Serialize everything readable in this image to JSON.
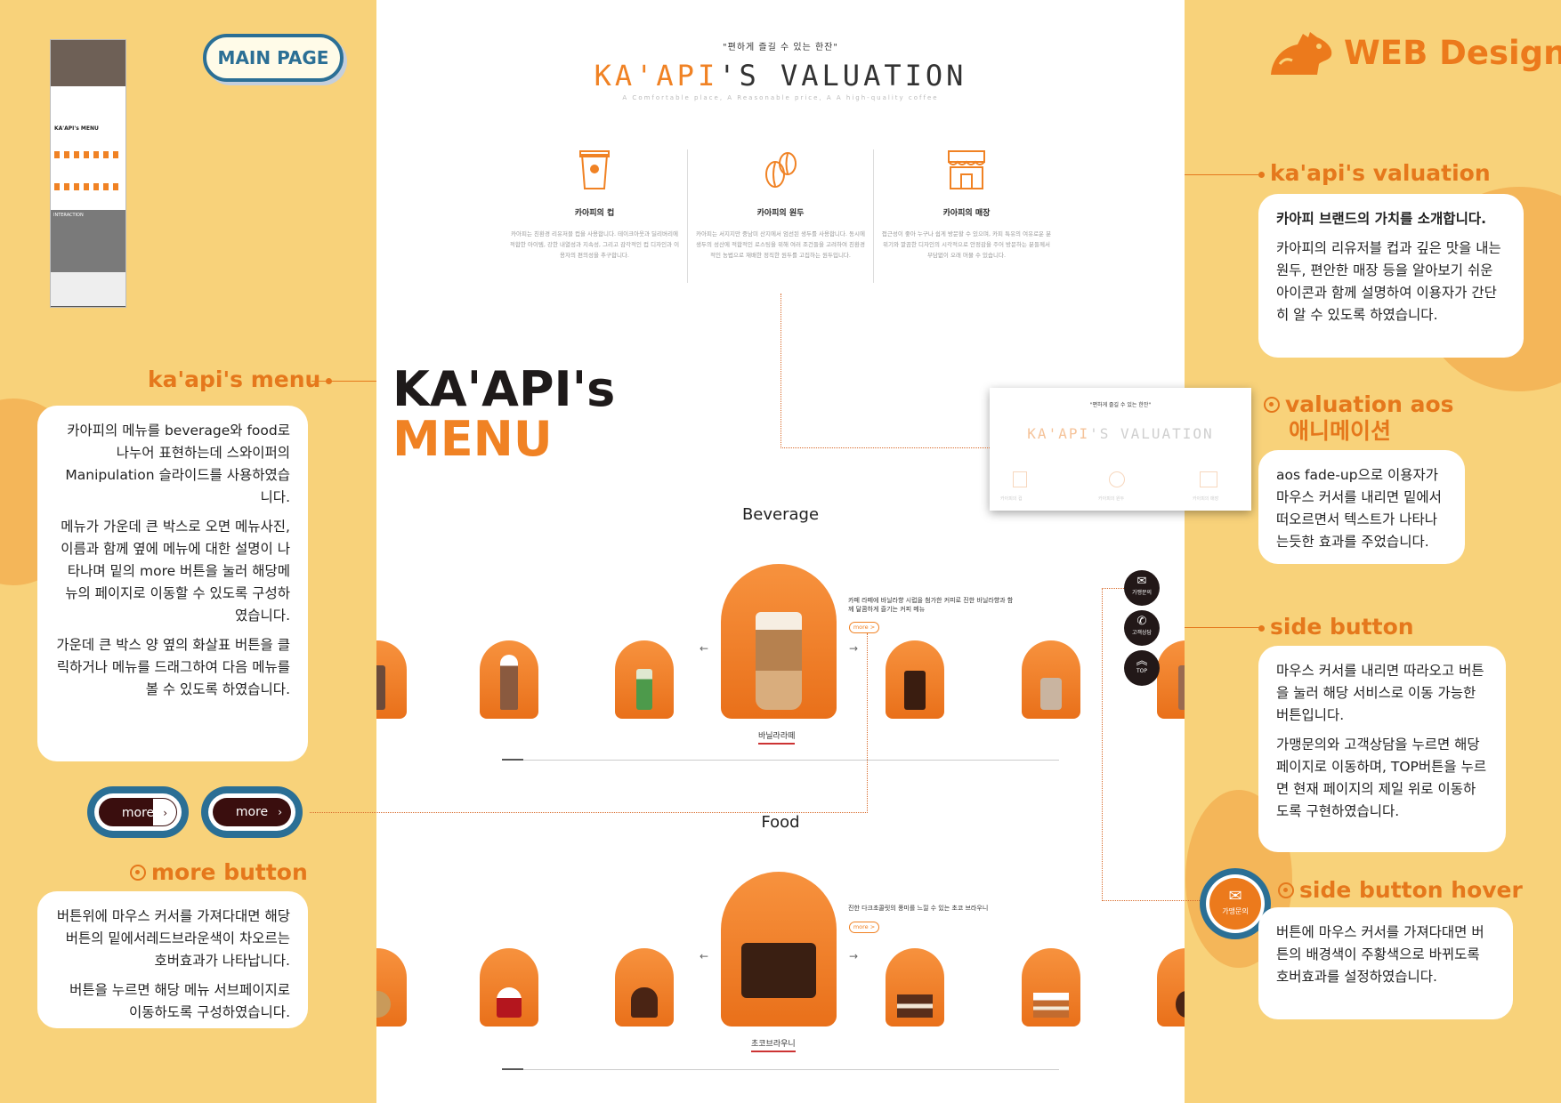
{
  "colors": {
    "background": "#f8d27a",
    "accent": "#e5781c",
    "button_blue": "#2b6f95",
    "dark_brown": "#221818"
  },
  "brand": {
    "label": "WEB Design",
    "icon": "capybara-logo-icon"
  },
  "main_page_label": "MAIN PAGE",
  "thumbnail": {
    "title": "KA'API's MENU",
    "section": "INTERACTION"
  },
  "mockup": {
    "valuation": {
      "tagline": "\"편하게 즐길 수 있는 한잔\"",
      "title_a": "KA'API",
      "title_b": "'S VALUATION",
      "subtitle": "A Comfortable place, A Reasonable price, A A high-quality coffee",
      "columns": [
        {
          "icon": "cup-icon",
          "title": "카아피의 컵",
          "desc": "카아피는 친환경 리유저블 컵을 사용합니다. 테이크아웃과 딜리버리에 적합한 아이템, 강한 내열성과 지속성, 그리고 감각적인 컵 디자인과 이용자의 편의성을 추구합니다."
        },
        {
          "icon": "coffee-bean-icon",
          "title": "카아피의 원두",
          "desc": "카아피는 서지지만 중남미 산지에서 엄선된 생두를 사용합니다. 동시에 생두의 성산에 적합적인 로스팅을 위해 여러 조건들을 고려하여 친환경적인 농법으로 재배한 정직한 원두를 고집하는 원두입니다."
        },
        {
          "icon": "store-icon",
          "title": "카아피의 매장",
          "desc": "접근성이 좋아 누구나 쉽게 방문할 수 있으며, 카피 특유의 여유로운 분위기와 깔끔한 디자인의 시각적으로 안정감을 주어 방문하는 분들께서 부담없이 오래 머물 수 있습니다."
        }
      ]
    },
    "menu_title_a": "KA'API's",
    "menu_title_b": "MENU",
    "beverage": {
      "label": "Beverage",
      "desc": "카페 라떼에 바닐라향 시럽을 첨가한 커피로 진한 바닐라향과 함께 달콤하게 즐기는 커피 메뉴",
      "more": "more >",
      "name": "바닐라라떼"
    },
    "food": {
      "label": "Food",
      "desc": "진한 다크초콜릿의 풍미를 느낄 수 있는 초코 브라우니",
      "more": "more >",
      "name": "초코브라우니"
    },
    "side_buttons": [
      {
        "icon": "chat-icon",
        "label": "가맹문의"
      },
      {
        "icon": "phone-icon",
        "label": "고객상담"
      },
      {
        "icon": "chevron-up-icon",
        "label": "TOP"
      }
    ]
  },
  "popup": {
    "tagline": "\"편하게 즐길 수 있는 한잔\"",
    "title_a": "KA'API",
    "title_b": "'S VALUATION",
    "labels": [
      "카아피의 컵",
      "카아피의 원두",
      "카아피의 매장"
    ]
  },
  "notes": {
    "menu": {
      "heading": "ka'api's menu",
      "p1": "카아피의 메뉴를 beverage와 food로 나누어 표현하는데 스와이퍼의 Manipulation 슬라이드를 사용하였습니다.",
      "p2": "메뉴가 가운데 큰 박스로 오면 메뉴사진,이름과 함께 옆에 메뉴에 대한 설명이 나타나며 밑의 more 버튼을 눌러 해당메뉴의 페이지로 이동할 수 있도록 구성하였습니다.",
      "p3": "가운데 큰 박스 양 옆의 화살표 버튼을 클릭하거나 메뉴를 드래그하여 다음 메뉴를 볼 수 있도록 하였습니다."
    },
    "more_button": {
      "heading": "more button",
      "label": "more",
      "p1": "버튼위에 마우스 커서를 가져다대면 해당 버튼의 밑에서레드브라운색이 차오르는 호버효과가 나타납니다.",
      "p2": "버튼을 누르면 해당 메뉴 서브페이지로 이동하도록 구성하였습니다."
    },
    "valuation": {
      "heading": "ka'api's valuation",
      "p1": "카아피 브랜드의 가치를 소개합니다.",
      "p2": "카아피의 리유저블 컵과 깊은 맛을 내는 원두, 편안한 매장 등을 알아보기 쉬운 아이콘과 함께 설명하여 이용자가 간단히 알 수 있도록 하였습니다."
    },
    "aos": {
      "heading1": "valuation aos",
      "heading2": "애니메이션",
      "p1": "aos fade-up으로 이용자가 마우스 커서를 내리면 밑에서 떠오르면서 텍스트가 나타나는듯한 효과를 주었습니다."
    },
    "side_button": {
      "heading": "side button",
      "p1": "마우스 커서를 내리면 따라오고 버튼을 눌러 해당 서비스로 이동 가능한 버튼입니다.",
      "p2": "가맹문의와 고객상담을 누르면 해당 페이지로 이동하며, TOP버튼을 누르면 현재 페이지의 제일 위로 이동하도록 구현하였습니다."
    },
    "hover": {
      "heading": "side button hover",
      "btn_label": "가맹문의",
      "p1": "버튼에 마우스 커서를 가져다대면 버튼의 배경색이 주황색으로 바뀌도록 호버효과를 설정하였습니다."
    }
  }
}
